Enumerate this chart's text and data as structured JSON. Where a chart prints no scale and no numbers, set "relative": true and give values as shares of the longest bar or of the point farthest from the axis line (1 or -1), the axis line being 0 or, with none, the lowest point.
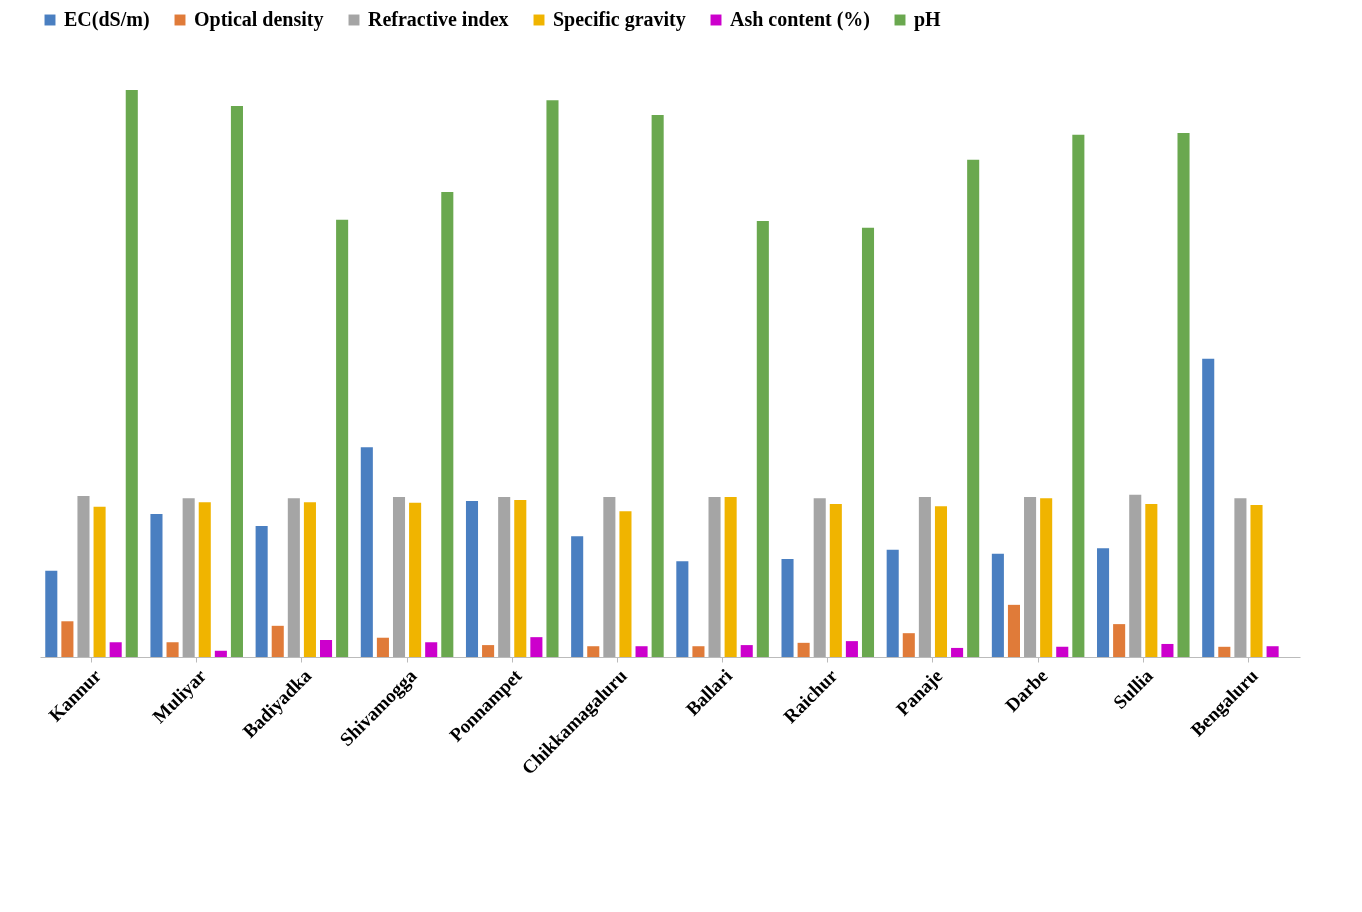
{
  "chart_data": {
    "type": "bar",
    "relative": true,
    "legend": "top",
    "grid": false,
    "categories": [
      "Kannur",
      "Muliyar",
      "Badiyadka",
      "Shivamogga",
      "Ponnampet",
      "Chikkamagaluru",
      "Ballari",
      "Raichur",
      "Panaje",
      "Darbe",
      "Sullia",
      "Bengaluru"
    ],
    "series": [
      {
        "name": "EC(dS/m)",
        "color": "#4a7fc1",
        "values": [
          0.152,
          0.252,
          0.231,
          0.37,
          0.275,
          0.213,
          0.169,
          0.173,
          0.189,
          0.182,
          0.192,
          0.526
        ]
      },
      {
        "name": "Optical density",
        "color": "#e07b39",
        "values": [
          0.063,
          0.026,
          0.055,
          0.034,
          0.021,
          0.019,
          0.019,
          0.025,
          0.042,
          0.092,
          0.058,
          0.018
        ]
      },
      {
        "name": "Refractive index",
        "color": "#a5a5a5",
        "values": [
          0.284,
          0.28,
          0.28,
          0.282,
          0.282,
          0.282,
          0.282,
          0.28,
          0.282,
          0.282,
          0.286,
          0.28
        ]
      },
      {
        "name": "Specific gravity",
        "color": "#f0b400",
        "values": [
          0.265,
          0.273,
          0.273,
          0.272,
          0.277,
          0.257,
          0.282,
          0.27,
          0.266,
          0.28,
          0.27,
          0.268
        ]
      },
      {
        "name": "Ash content (%)",
        "color": "#cc00cc",
        "values": [
          0.026,
          0.011,
          0.03,
          0.026,
          0.035,
          0.019,
          0.021,
          0.028,
          0.016,
          0.018,
          0.023,
          0.019
        ]
      },
      {
        "name": "pH",
        "color": "#6aa84f",
        "values": [
          1,
          0.972,
          0.771,
          0.82,
          0.982,
          0.956,
          0.769,
          0.757,
          0.877,
          0.921,
          0.924,
          null
        ]
      }
    ]
  }
}
